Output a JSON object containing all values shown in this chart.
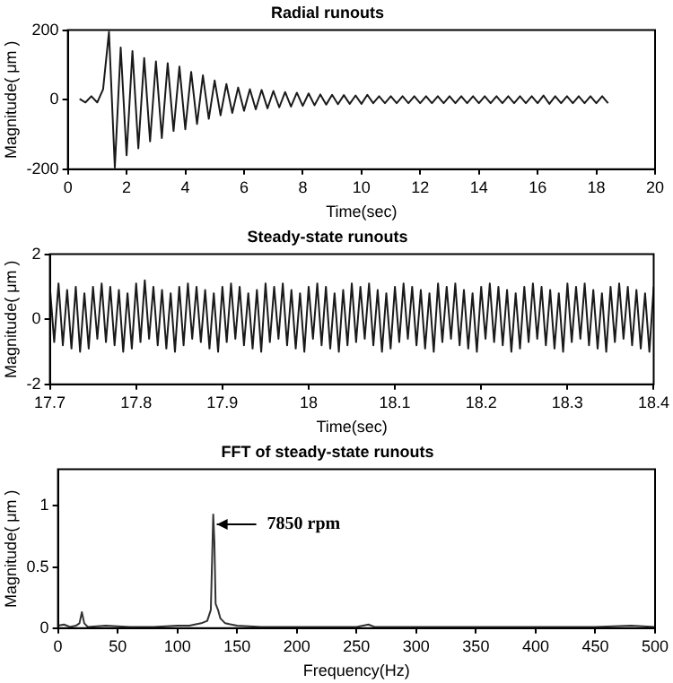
{
  "chart_data": [
    {
      "type": "line",
      "title": "Radial runouts",
      "xlabel": "Time(sec)",
      "ylabel": "Magnitude( μm )",
      "xlim": [
        0,
        20
      ],
      "xticks": [
        0,
        2,
        4,
        6,
        8,
        10,
        12,
        14,
        16,
        18,
        20
      ],
      "ylim": [
        -200,
        200
      ],
      "yticks": [
        -200,
        0,
        200
      ],
      "grid": false,
      "legend": false,
      "marker": "none",
      "x": [
        0.4,
        0.6,
        0.8,
        1.0,
        1.2,
        1.4,
        1.6,
        1.8,
        2.0,
        2.2,
        2.4,
        2.6,
        2.8,
        3.0,
        3.2,
        3.4,
        3.6,
        3.8,
        4.0,
        4.2,
        4.4,
        4.6,
        4.8,
        5.0,
        5.2,
        5.4,
        5.6,
        5.8,
        6.0,
        6.2,
        6.4,
        6.6,
        6.8,
        7.0,
        7.2,
        7.4,
        7.6,
        7.8,
        8.0,
        8.2,
        8.4,
        8.6,
        8.8,
        9.0,
        9.2,
        9.4,
        9.6,
        9.8,
        10.0,
        10.2,
        10.4,
        10.6,
        10.8,
        11.0,
        11.2,
        11.4,
        11.6,
        11.8,
        12.0,
        12.2,
        12.4,
        12.6,
        12.8,
        13.0,
        13.2,
        13.4,
        13.6,
        13.8,
        14.0,
        14.2,
        14.4,
        14.6,
        14.8,
        15.0,
        15.2,
        15.4,
        15.6,
        15.8,
        16.0,
        16.2,
        16.4,
        16.6,
        16.8,
        17.0,
        17.2,
        17.4,
        17.6,
        17.8,
        18.0,
        18.2,
        18.4
      ],
      "series": [
        {
          "color": "#1a1a1a",
          "values": [
            2,
            -8,
            10,
            -8,
            30,
            195,
            -195,
            150,
            -160,
            140,
            -140,
            120,
            -120,
            110,
            -110,
            105,
            -90,
            95,
            -85,
            80,
            -70,
            70,
            -55,
            55,
            -45,
            45,
            -38,
            35,
            -32,
            30,
            -28,
            28,
            -25,
            25,
            -22,
            22,
            -20,
            20,
            -18,
            18,
            -16,
            15,
            -14,
            14,
            -13,
            13,
            -12,
            12,
            -12,
            14,
            -10,
            10,
            -10,
            10,
            -10,
            10,
            -10,
            10,
            -10,
            10,
            -10,
            10,
            -10,
            10,
            -10,
            10,
            -10,
            10,
            -10,
            10,
            -10,
            10,
            -10,
            10,
            -10,
            10,
            -10,
            10,
            -10,
            12,
            -12,
            10,
            -10,
            10,
            -10,
            10,
            -10,
            10,
            -10,
            10,
            -10
          ]
        }
      ]
    },
    {
      "type": "line",
      "title": "Steady-state runouts",
      "xlabel": "Time(sec)",
      "ylabel": "Magnitude( μm )",
      "xlim": [
        17.7,
        18.4
      ],
      "xticks": [
        17.7,
        17.8,
        17.9,
        18,
        18.1,
        18.2,
        18.3,
        18.4
      ],
      "ylim": [
        -2,
        2
      ],
      "yticks": [
        -2,
        0,
        2
      ],
      "grid": false,
      "legend": false,
      "marker": "none",
      "x": [
        17.7,
        17.705,
        17.71,
        17.715,
        17.72,
        17.725,
        17.73,
        17.735,
        17.74,
        17.745,
        17.75,
        17.755,
        17.76,
        17.765,
        17.77,
        17.775,
        17.78,
        17.785,
        17.79,
        17.795,
        17.8,
        17.805,
        17.81,
        17.815,
        17.82,
        17.825,
        17.83,
        17.835,
        17.84,
        17.845,
        17.85,
        17.855,
        17.86,
        17.865,
        17.87,
        17.875,
        17.88,
        17.885,
        17.89,
        17.895,
        17.9,
        17.905,
        17.91,
        17.915,
        17.92,
        17.925,
        17.93,
        17.935,
        17.94,
        17.945,
        17.95,
        17.955,
        17.96,
        17.965,
        17.97,
        17.975,
        17.98,
        17.985,
        17.99,
        17.995,
        18,
        18.005,
        18.01,
        18.015,
        18.02,
        18.025,
        18.03,
        18.035,
        18.04,
        18.045,
        18.05,
        18.055,
        18.06,
        18.065,
        18.07,
        18.075,
        18.08,
        18.085,
        18.09,
        18.095,
        18.1,
        18.105,
        18.11,
        18.115,
        18.12,
        18.125,
        18.13,
        18.135,
        18.14,
        18.145,
        18.15,
        18.155,
        18.16,
        18.165,
        18.17,
        18.175,
        18.18,
        18.185,
        18.19,
        18.195,
        18.2,
        18.205,
        18.21,
        18.215,
        18.22,
        18.225,
        18.23,
        18.235,
        18.24,
        18.245,
        18.25,
        18.255,
        18.26,
        18.265,
        18.27,
        18.275,
        18.28,
        18.285,
        18.29,
        18.295,
        18.3,
        18.305,
        18.31,
        18.315,
        18.32,
        18.325,
        18.33,
        18.335,
        18.34,
        18.345,
        18.35,
        18.355,
        18.36,
        18.365,
        18.37,
        18.375,
        18.38,
        18.385,
        18.39,
        18.395,
        18.4
      ],
      "series": [
        {
          "color": "#1a1a1a",
          "values": [
            1.0,
            -0.7,
            1.1,
            -0.8,
            0.9,
            -0.9,
            1.0,
            -1.0,
            0.8,
            -0.9,
            1.0,
            -0.6,
            1.1,
            -0.7,
            1.0,
            -0.8,
            0.9,
            -1.0,
            0.8,
            -0.9,
            1.1,
            -0.7,
            1.2,
            -0.6,
            1.0,
            -0.8,
            0.9,
            -0.9,
            0.8,
            -1.0,
            1.0,
            -0.8,
            1.1,
            -0.6,
            1.0,
            -0.7,
            0.9,
            -0.9,
            0.8,
            -1.0,
            1.0,
            -0.7,
            1.1,
            -0.6,
            1.0,
            -0.8,
            0.8,
            -0.9,
            0.9,
            -1.0,
            1.1,
            -0.7,
            1.0,
            -0.6,
            1.1,
            -0.8,
            0.9,
            -0.9,
            0.8,
            -1.0,
            1.0,
            -0.6,
            1.1,
            -0.8,
            1.0,
            -0.9,
            0.8,
            -1.0,
            0.9,
            -0.8,
            1.1,
            -0.7,
            1.0,
            -0.6,
            1.1,
            -0.8,
            0.9,
            -1.0,
            0.8,
            -0.9,
            1.0,
            -0.7,
            1.1,
            -0.6,
            1.0,
            -0.8,
            0.9,
            -0.9,
            0.8,
            -1.0,
            1.1,
            -0.7,
            1.0,
            -0.6,
            1.1,
            -0.8,
            0.9,
            -0.9,
            0.8,
            -1.0,
            1.0,
            -0.6,
            1.1,
            -0.7,
            1.0,
            -0.8,
            0.9,
            -1.0,
            0.8,
            -0.9,
            1.0,
            -0.7,
            1.1,
            -0.6,
            1.0,
            -0.8,
            0.9,
            -0.9,
            0.8,
            -1.0,
            1.1,
            -0.7,
            1.0,
            -0.6,
            1.1,
            -0.8,
            0.9,
            -0.9,
            0.8,
            -1.0,
            1.0,
            -0.7,
            1.1,
            -0.6,
            1.0,
            -0.8,
            0.9,
            -0.9,
            0.8,
            -1.0,
            1.0
          ]
        }
      ]
    },
    {
      "type": "line",
      "title": "FFT of steady-state runouts",
      "xlabel": "Frequency(Hz)",
      "ylabel": "Magnitude( μm )",
      "xlim": [
        0,
        500
      ],
      "xticks": [
        0,
        50,
        100,
        150,
        200,
        250,
        300,
        350,
        400,
        450,
        500
      ],
      "ylim": [
        0,
        1.3
      ],
      "yticks": [
        0,
        0.5,
        1
      ],
      "grid": false,
      "legend": false,
      "marker": "none",
      "annotations": [
        {
          "text": "7850 rpm",
          "x": 133,
          "y": 0.85
        }
      ],
      "x": [
        0,
        5,
        10,
        15,
        18,
        20,
        22,
        25,
        40,
        60,
        80,
        100,
        110,
        120,
        125,
        128,
        130,
        131,
        132,
        134,
        136,
        140,
        150,
        170,
        200,
        250,
        260,
        265,
        300,
        350,
        400,
        450,
        480,
        500
      ],
      "series": [
        {
          "color": "#333333",
          "values": [
            0.02,
            0.03,
            0.01,
            0.02,
            0.04,
            0.13,
            0.04,
            0.01,
            0.02,
            0.01,
            0.01,
            0.02,
            0.02,
            0.04,
            0.06,
            0.15,
            0.93,
            0.7,
            0.2,
            0.15,
            0.08,
            0.04,
            0.02,
            0.01,
            0.01,
            0.01,
            0.03,
            0.01,
            0.01,
            0.01,
            0.01,
            0.01,
            0.02,
            0.01
          ]
        }
      ]
    }
  ]
}
